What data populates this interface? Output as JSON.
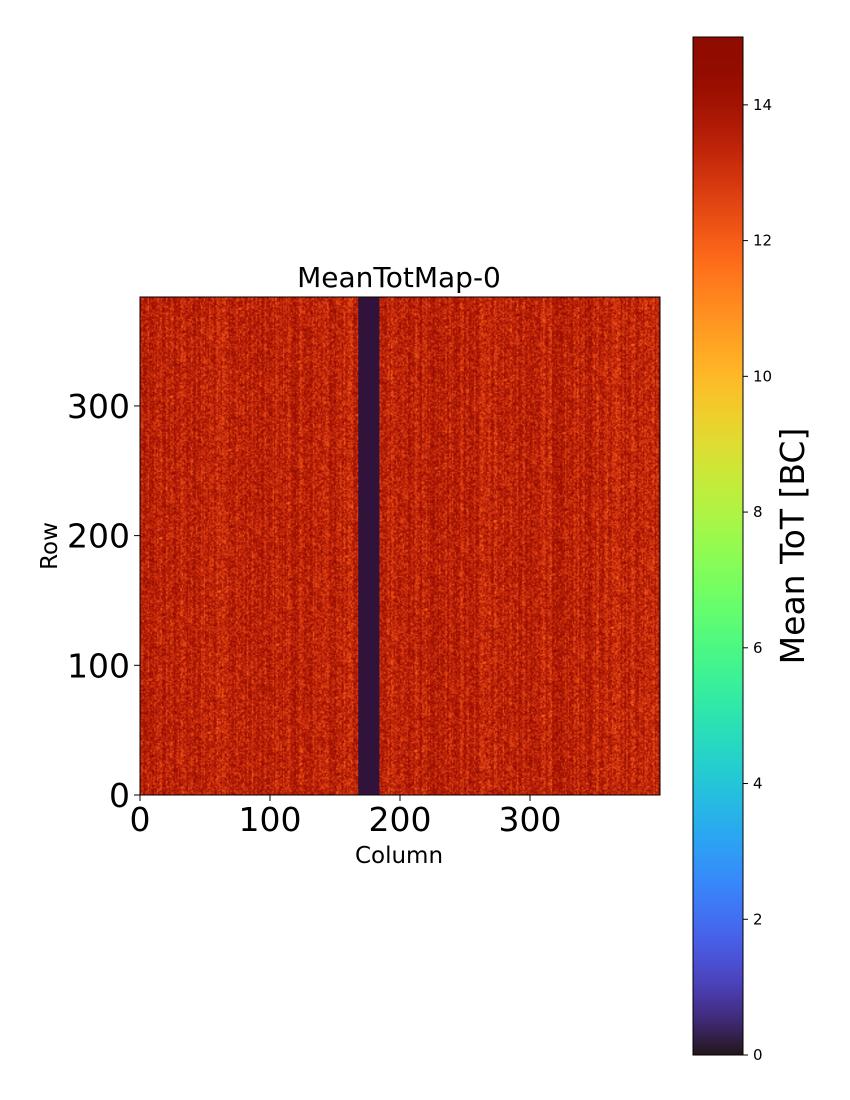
{
  "chart_data": {
    "type": "heatmap",
    "title": "MeanTotMap-0",
    "xlabel": "Column",
    "ylabel": "Row",
    "xlim": [
      0,
      400
    ],
    "ylim": [
      0,
      384
    ],
    "x_ticks": [
      0,
      100,
      200,
      300
    ],
    "y_ticks": [
      0,
      100,
      200,
      300
    ],
    "colorbar": {
      "label": "Mean ToT [BC]",
      "range": [
        0,
        15
      ],
      "ticks": [
        0,
        2,
        4,
        6,
        8,
        10,
        12,
        14
      ],
      "colormap": "turbo"
    },
    "field": {
      "typical_value": 13.5,
      "spread": 1.5
    },
    "dead_region": {
      "column_range": [
        168,
        184
      ],
      "row_range": [
        0,
        384
      ],
      "value": 0
    }
  }
}
